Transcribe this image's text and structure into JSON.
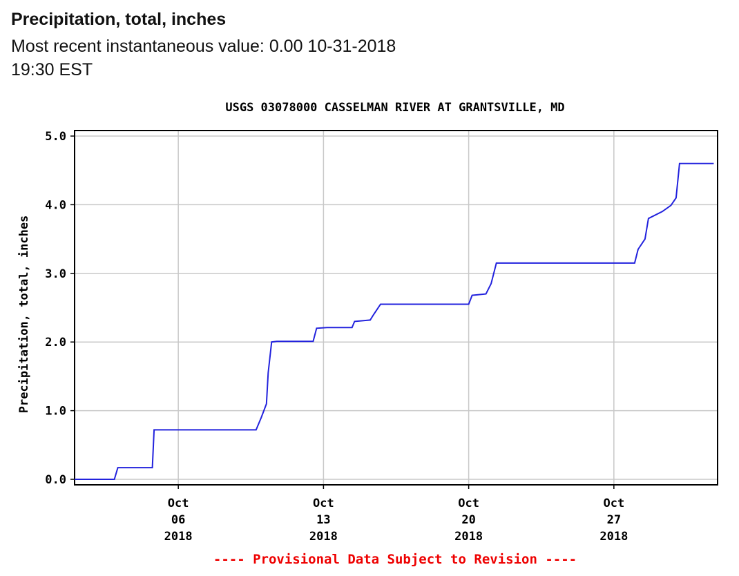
{
  "header": {
    "title": "Precipitation, total, inches",
    "subtitle": "Most recent instantaneous value: 0.00 10-31-2018   19:30 EST"
  },
  "chart_data": {
    "type": "line",
    "title": "USGS 03078000 CASSELMAN RIVER AT GRANTSVILLE, MD",
    "ylabel": "Precipitation, total, inches",
    "xlabel": "",
    "ylim": [
      0,
      5
    ],
    "xlim": [
      "2018-10-01",
      "2018-11-01"
    ],
    "y_ticks": [
      "0.0",
      "1.0",
      "2.0",
      "3.0",
      "4.0",
      "5.0"
    ],
    "x_ticks": [
      {
        "date": "2018-10-06",
        "lines": [
          "Oct",
          "06",
          "2018"
        ]
      },
      {
        "date": "2018-10-13",
        "lines": [
          "Oct",
          "13",
          "2018"
        ]
      },
      {
        "date": "2018-10-20",
        "lines": [
          "Oct",
          "20",
          "2018"
        ]
      },
      {
        "date": "2018-10-27",
        "lines": [
          "Oct",
          "27",
          "2018"
        ]
      }
    ],
    "grid": true,
    "line_color": "#2222dd",
    "series": [
      {
        "x": [
          "2018-10-01 00:00",
          "2018-10-02 22:00",
          "2018-10-03 02:00",
          "2018-10-04 18:00",
          "2018-10-04 20:00",
          "2018-10-09 18:00",
          "2018-10-10 00:00",
          "2018-10-10 06:00",
          "2018-10-10 08:00",
          "2018-10-10 12:00",
          "2018-10-10 18:00",
          "2018-10-12 12:00",
          "2018-10-12 16:00",
          "2018-10-13 04:00",
          "2018-10-14 09:00",
          "2018-10-14 12:00",
          "2018-10-15 06:00",
          "2018-10-15 10:00",
          "2018-10-15 18:00",
          "2018-10-20 00:00",
          "2018-10-20 04:00",
          "2018-10-20 20:00",
          "2018-10-21 02:00",
          "2018-10-21 08:00",
          "2018-10-28 00:00",
          "2018-10-28 04:00",
          "2018-10-28 12:00",
          "2018-10-28 16:00",
          "2018-10-29 08:00",
          "2018-10-29 18:00",
          "2018-10-30 00:00",
          "2018-10-30 04:00",
          "2018-10-31 19:30"
        ],
        "y": [
          0.0,
          0.0,
          0.17,
          0.17,
          0.72,
          0.72,
          0.9,
          1.1,
          1.55,
          2.0,
          2.01,
          2.01,
          2.2,
          2.21,
          2.21,
          2.3,
          2.32,
          2.4,
          2.55,
          2.55,
          2.68,
          2.7,
          2.85,
          3.15,
          3.15,
          3.35,
          3.5,
          3.8,
          3.9,
          3.99,
          4.1,
          4.6,
          4.6
        ]
      }
    ],
    "footnote": "---- Provisional Data Subject to Revision ----",
    "footnote_color": "#ee0000"
  }
}
